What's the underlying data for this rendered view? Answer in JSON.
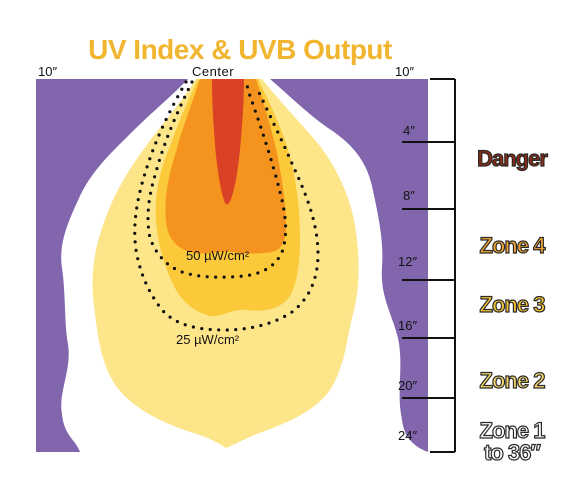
{
  "title": "UV Index & UVB Output",
  "top_labels": {
    "left": "10″",
    "center": "Center",
    "right": "10″"
  },
  "flux_labels": {
    "inner": "50 µW/cm²",
    "outer": "25 µW/cm²"
  },
  "ruler_labels": [
    "4″",
    "8″",
    "12″",
    "16″",
    "20″",
    "24″"
  ],
  "zones": {
    "danger": "Danger",
    "zone4": "Zone 4",
    "zone3": "Zone 3",
    "zone2": "Zone 2",
    "zone1_line1": "Zone 1",
    "zone1_line2": "to 36″"
  },
  "colors": {
    "background": "#8266ad",
    "outer_glow": "#ffffff",
    "pale_yellow": "#fde58a",
    "yellow": "#fbc93a",
    "orange": "#f5931f",
    "red": "#d94224",
    "danger": "#8c2a13",
    "zone4": "#f2a531",
    "zone3": "#f6c532",
    "zone2": "#f7d86a",
    "zone1": "#ffffff"
  }
}
